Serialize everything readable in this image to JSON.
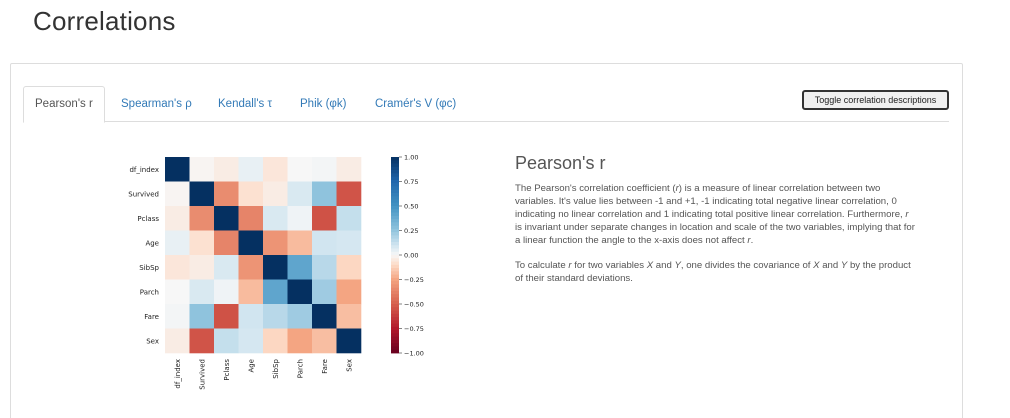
{
  "page": {
    "title": "Correlations"
  },
  "tabs": [
    {
      "label": "Pearson's r",
      "active": true
    },
    {
      "label": "Spearman's ρ",
      "active": false
    },
    {
      "label": "Kendall's τ",
      "active": false
    },
    {
      "label": "Phik (φk)",
      "active": false
    },
    {
      "label": "Cramér's V (φc)",
      "active": false
    }
  ],
  "toggle_button": {
    "label": "Toggle correlation descriptions"
  },
  "description": {
    "title": "Pearson's r",
    "p1_parts": [
      "The Pearson's correlation coefficient (",
      "r",
      ") is a measure of linear correlation between two variables. It's value lies between -1 and +1, -1 indicating total negative linear correlation, 0 indicating no linear correlation and 1 indicating total positive linear correlation. Furthermore, ",
      "r",
      " is invariant under separate changes in location and scale of the two variables, implying that for a linear function the angle to the x-axis does not affect ",
      "r",
      "."
    ],
    "p2_parts": [
      "To calculate ",
      "r",
      " for two variables ",
      "X",
      " and ",
      "Y",
      ", one divides the covariance of ",
      "X",
      " and ",
      "Y",
      " by the product of their standard deviations."
    ]
  },
  "chart_data": {
    "type": "heatmap",
    "title": "",
    "variables": [
      "df_index",
      "Survived",
      "Pclass",
      "Age",
      "SibSp",
      "Parch",
      "Fare",
      "Sex"
    ],
    "values": [
      [
        1.0,
        -0.01,
        -0.04,
        0.04,
        -0.06,
        -0.0,
        0.01,
        -0.04
      ],
      [
        -0.01,
        1.0,
        -0.34,
        -0.08,
        -0.04,
        0.08,
        0.26,
        -0.54
      ],
      [
        -0.04,
        -0.34,
        1.0,
        -0.37,
        0.08,
        0.02,
        -0.55,
        0.13
      ],
      [
        0.04,
        -0.08,
        -0.37,
        1.0,
        -0.31,
        -0.19,
        0.1,
        0.09
      ],
      [
        -0.06,
        -0.04,
        0.08,
        -0.31,
        1.0,
        0.41,
        0.16,
        -0.11
      ],
      [
        -0.0,
        0.08,
        0.02,
        -0.19,
        0.41,
        1.0,
        0.22,
        -0.25
      ],
      [
        0.01,
        0.26,
        -0.55,
        0.1,
        0.16,
        0.22,
        1.0,
        -0.18
      ],
      [
        -0.04,
        -0.54,
        0.13,
        0.09,
        -0.11,
        -0.25,
        -0.18,
        1.0
      ]
    ],
    "colorbar": {
      "min": -1.0,
      "max": 1.0,
      "ticks": [
        "1.00",
        "0.75",
        "0.50",
        "0.25",
        "0.00",
        "−0.25",
        "−0.50",
        "−0.75",
        "−1.00"
      ],
      "colormap": "RdBu"
    }
  }
}
